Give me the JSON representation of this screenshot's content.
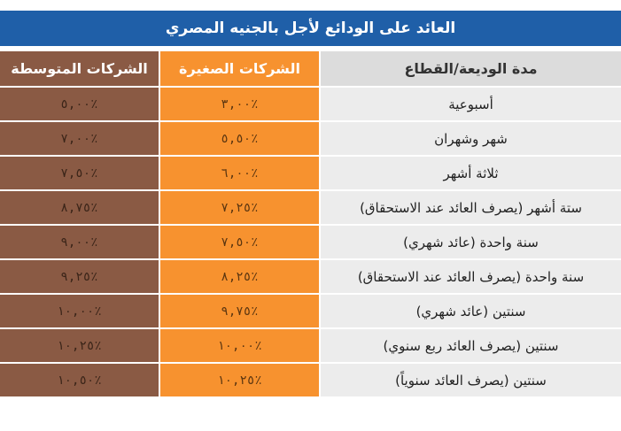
{
  "title": "العائد على الودائع لأجل بالجنيه المصري",
  "headers": {
    "medium": "الشركات المتوسطة",
    "small": "الشركات الصغيرة",
    "period": "مدة الوديعة/القطاع"
  },
  "rows": [
    {
      "period": "أسبوعية",
      "small": "٣,٠٠٪",
      "medium": "٥,٠٠٪"
    },
    {
      "period": "شهر وشهران",
      "small": "٥,٥٠٪",
      "medium": "٧,٠٠٪"
    },
    {
      "period": "ثلاثة أشهر",
      "small": "٦,٠٠٪",
      "medium": "٧,٥٠٪"
    },
    {
      "period": "ستة أشهر (يصرف العائد عند الاستحقاق)",
      "small": "٧,٢٥٪",
      "medium": "٨,٧٥٪"
    },
    {
      "period": "سنة واحدة (عائد شهري)",
      "small": "٧,٥٠٪",
      "medium": "٩,٠٠٪"
    },
    {
      "period": "سنة واحدة (يصرف العائد عند الاستحقاق)",
      "small": "٨,٢٥٪",
      "medium": "٩,٢٥٪"
    },
    {
      "period": "سنتين (عائد شهري)",
      "small": "٩,٧٥٪",
      "medium": "١٠,٠٠٪"
    },
    {
      "period": "سنتين (يصرف العائد ربع سنوي)",
      "small": "١٠,٠٠٪",
      "medium": "١٠,٢٥٪"
    },
    {
      "period": "سنتين (يصرف العائد سنوياً)",
      "small": "١٠,٢٥٪",
      "medium": "١٠,٥٠٪"
    }
  ],
  "colors": {
    "title_bar": "#1f5fa8",
    "medium_column": "#8a5a44",
    "small_column": "#f7922f",
    "period_column": "#ececec"
  }
}
